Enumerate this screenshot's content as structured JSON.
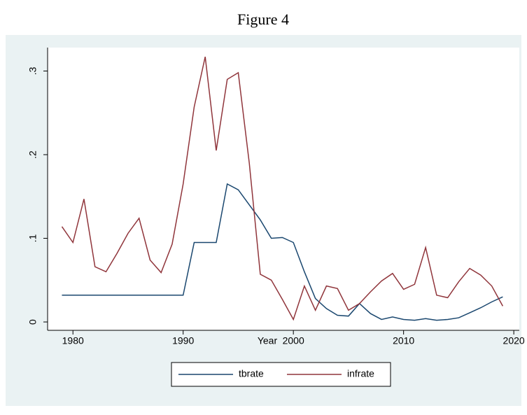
{
  "chart_data": {
    "type": "line",
    "title": "Figure 4",
    "x_label": "Year",
    "x": [
      1979,
      1980,
      1981,
      1982,
      1983,
      1984,
      1985,
      1986,
      1987,
      1988,
      1989,
      1990,
      1991,
      1992,
      1993,
      1994,
      1995,
      1996,
      1997,
      1998,
      1999,
      2000,
      2001,
      2002,
      2003,
      2004,
      2005,
      2006,
      2007,
      2008,
      2009,
      2010,
      2011,
      2012,
      2013,
      2014,
      2015,
      2016,
      2017,
      2018,
      2019
    ],
    "series": [
      {
        "name": "tbrate",
        "color": "#1a476f",
        "values": [
          0.032,
          0.032,
          0.032,
          0.032,
          0.032,
          0.032,
          0.032,
          0.032,
          0.032,
          0.032,
          0.032,
          0.032,
          0.095,
          0.095,
          0.095,
          0.165,
          0.158,
          0.14,
          0.122,
          0.1,
          0.101,
          0.095,
          0.06,
          0.028,
          0.016,
          0.008,
          0.007,
          0.022,
          0.01,
          0.003,
          0.006,
          0.003,
          0.002,
          0.004,
          0.002,
          0.003,
          0.005,
          0.011,
          0.017,
          0.024,
          0.03
        ]
      },
      {
        "name": "infrate",
        "color": "#90353b",
        "values": [
          0.114,
          0.095,
          0.147,
          0.066,
          0.06,
          0.082,
          0.106,
          0.124,
          0.074,
          0.059,
          0.093,
          0.165,
          0.257,
          0.317,
          0.205,
          0.29,
          0.298,
          0.19,
          0.057,
          0.05,
          0.027,
          0.003,
          0.043,
          0.014,
          0.043,
          0.04,
          0.014,
          0.022,
          0.036,
          0.049,
          0.058,
          0.039,
          0.045,
          0.089,
          0.032,
          0.029,
          0.048,
          0.064,
          0.056,
          0.043,
          0.019
        ]
      }
    ],
    "xlim": [
      1977.7,
      2020.5
    ],
    "xticks": [
      1980,
      1990,
      2000,
      2010,
      2020
    ],
    "ylim": [
      -0.01,
      0.328
    ],
    "yticks": [
      {
        "value": 0,
        "label": "0"
      },
      {
        "value": 0.1,
        "label": ".1"
      },
      {
        "value": 0.2,
        "label": ".2"
      },
      {
        "value": 0.3,
        "label": ".3"
      }
    ],
    "legend_position": "bottom"
  }
}
